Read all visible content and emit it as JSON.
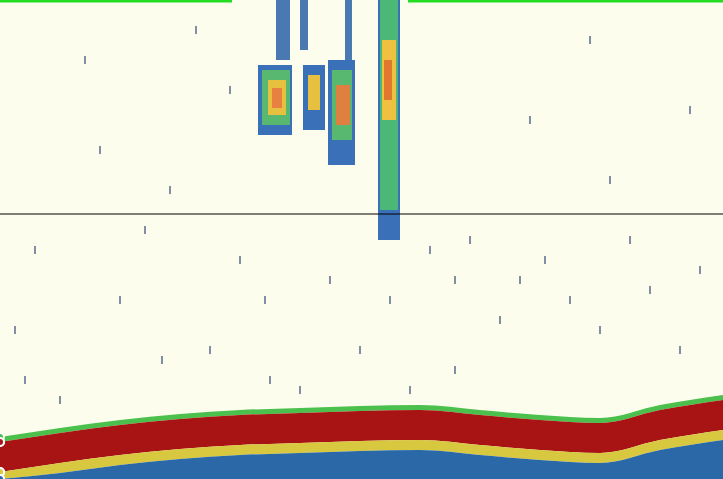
{
  "chart_data": {
    "type": "echogram",
    "tick_labels": false,
    "grid": false,
    "xlim": [
      0,
      723
    ],
    "ylim": [
      0,
      479
    ],
    "xticks": [],
    "yticks": [],
    "surface_line": {
      "depth": 1,
      "color": "#22dd22",
      "segments": [
        [
          0,
          232
        ],
        [
          408,
          723
        ]
      ]
    },
    "reference_depth": {
      "depth": 214,
      "color": "#000000"
    },
    "bottom": {
      "x": [
        0,
        60,
        120,
        180,
        240,
        300,
        360,
        420,
        480,
        540,
        600,
        660,
        723
      ],
      "boundaries": [
        [
          437,
          428,
          420,
          414,
          410,
          408,
          406,
          405,
          410,
          415,
          418,
          405,
          395
        ],
        [
          442,
          433,
          425,
          419,
          415,
          413,
          411,
          410,
          415,
          420,
          423,
          410,
          400
        ],
        [
          472,
          463,
          455,
          449,
          445,
          443,
          441,
          440,
          445,
          450,
          453,
          440,
          430
        ],
        [
          479,
          473,
          465,
          459,
          455,
          453,
          451,
          450,
          455,
          460,
          463,
          450,
          440
        ],
        [
          479,
          479,
          479,
          479,
          479,
          479,
          479,
          479,
          479,
          479,
          479,
          479,
          479
        ]
      ],
      "colors": [
        "#4cc04c",
        "#a81414",
        "#d8c840",
        "#2a68a8"
      ]
    },
    "schools": [
      {
        "x": [
          378,
          400
        ],
        "y": [
          0,
          240
        ],
        "color": "#3a70b8"
      },
      {
        "x": [
          380,
          398
        ],
        "y": [
          0,
          210
        ],
        "color": "#4cb878"
      },
      {
        "x": [
          382,
          396
        ],
        "y": [
          40,
          120
        ],
        "color": "#f0c040"
      },
      {
        "x": [
          384,
          392
        ],
        "y": [
          60,
          100
        ],
        "color": "#e07830"
      },
      {
        "x": [
          276,
          290
        ],
        "y": [
          0,
          60
        ],
        "color": "#4a78b0"
      },
      {
        "x": [
          300,
          308
        ],
        "y": [
          0,
          50
        ],
        "color": "#4a78b0"
      },
      {
        "x": [
          345,
          352
        ],
        "y": [
          0,
          60
        ],
        "color": "#4a78b0"
      },
      {
        "x": [
          258,
          292
        ],
        "y": [
          65,
          135
        ],
        "color": "#3a70b8"
      },
      {
        "x": [
          262,
          290
        ],
        "y": [
          70,
          125
        ],
        "color": "#58b870"
      },
      {
        "x": [
          268,
          286
        ],
        "y": [
          80,
          115
        ],
        "color": "#e8c040"
      },
      {
        "x": [
          272,
          282
        ],
        "y": [
          88,
          108
        ],
        "color": "#e88040"
      },
      {
        "x": [
          303,
          325
        ],
        "y": [
          65,
          130
        ],
        "color": "#3a70b8"
      },
      {
        "x": [
          308,
          320
        ],
        "y": [
          75,
          110
        ],
        "color": "#e8c040"
      },
      {
        "x": [
          328,
          355
        ],
        "y": [
          60,
          165
        ],
        "color": "#3a70b8"
      },
      {
        "x": [
          332,
          352
        ],
        "y": [
          70,
          140
        ],
        "color": "#58b870"
      },
      {
        "x": [
          336,
          350
        ],
        "y": [
          85,
          125
        ],
        "color": "#e08040"
      }
    ],
    "specks": {
      "color": "#5a6a8a",
      "x": [
        25,
        35,
        85,
        120,
        145,
        170,
        196,
        210,
        240,
        265,
        300,
        330,
        360,
        390,
        430,
        455,
        470,
        500,
        520,
        545,
        570,
        600,
        630,
        650,
        680,
        700,
        15,
        60,
        100,
        230,
        270,
        455,
        530,
        610,
        690,
        162,
        410,
        590
      ],
      "y": [
        380,
        250,
        60,
        300,
        230,
        190,
        30,
        350,
        260,
        300,
        390,
        280,
        350,
        300,
        250,
        370,
        240,
        320,
        280,
        260,
        300,
        330,
        240,
        290,
        350,
        270,
        330,
        400,
        150,
        90,
        380,
        280,
        120,
        180,
        110,
        360,
        390,
        40
      ]
    }
  }
}
